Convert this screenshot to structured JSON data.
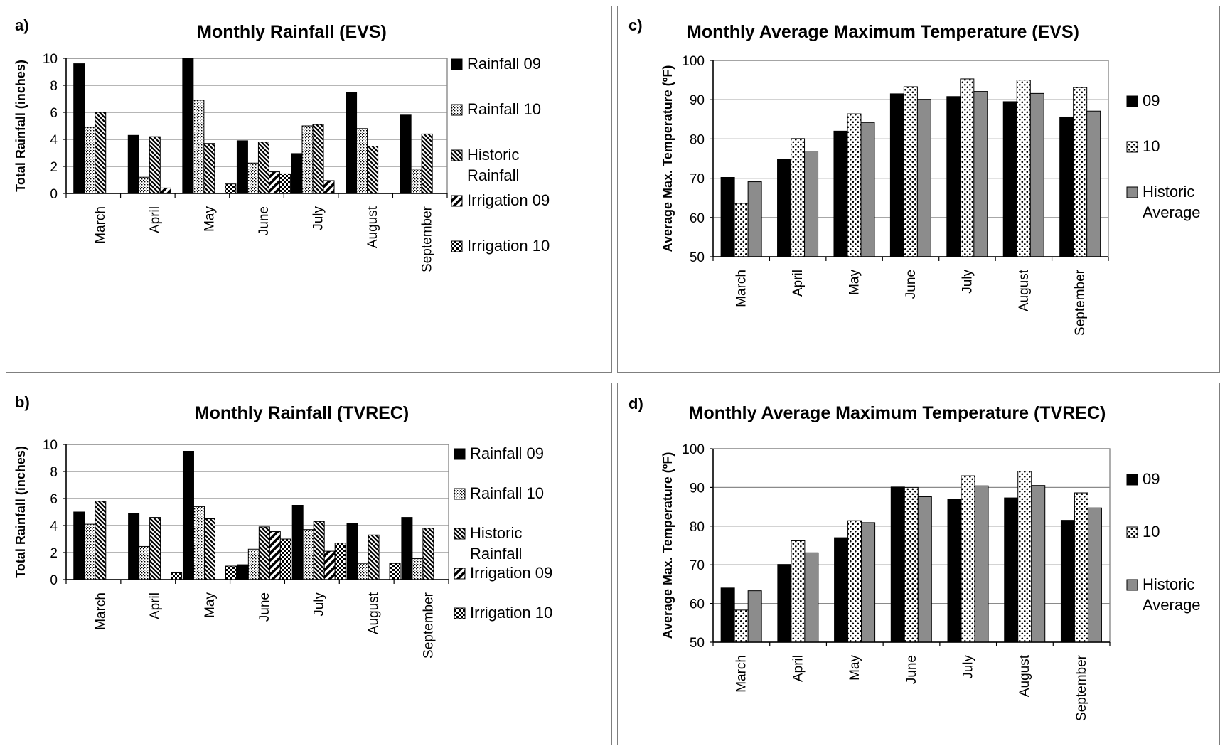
{
  "chart_data": [
    {
      "panel": "a)",
      "type": "bar",
      "title": "Monthly Rainfall (EVS)",
      "ylabel": "Total Rainfall (inches)",
      "xlabel": "",
      "ylim": [
        0,
        10
      ],
      "yticks": [
        0,
        2,
        4,
        6,
        8,
        10
      ],
      "grid": true,
      "legend": "right",
      "categories": [
        "March",
        "April",
        "May",
        "June",
        "July",
        "August",
        "September"
      ],
      "series": [
        {
          "name": "Rainfall 09",
          "pattern": "solid-black",
          "values": [
            9.6,
            4.3,
            10.0,
            3.9,
            2.95,
            7.5,
            5.8
          ]
        },
        {
          "name": "Rainfall 10",
          "pattern": "dots",
          "values": [
            4.9,
            1.2,
            6.9,
            2.25,
            5.0,
            4.8,
            1.8
          ]
        },
        {
          "name": "Historic Rainfall",
          "pattern": "diagonal-back",
          "values": [
            6.0,
            4.2,
            3.7,
            3.8,
            5.1,
            3.5,
            4.4
          ]
        },
        {
          "name": "Irrigation 09",
          "pattern": "half-diagonal",
          "values": [
            0,
            0.4,
            0,
            1.6,
            0.95,
            0,
            0
          ]
        },
        {
          "name": "Irrigation 10",
          "pattern": "checker",
          "values": [
            0,
            0,
            0.7,
            1.45,
            0,
            0,
            0
          ]
        }
      ]
    },
    {
      "panel": "c)",
      "type": "bar",
      "title": "Monthly Average Maximum Temperature (EVS)",
      "ylabel": "Average Max. Temperature (ºF)",
      "xlabel": "",
      "ylim": [
        50,
        100
      ],
      "yticks": [
        50,
        60,
        70,
        80,
        90,
        100
      ],
      "grid": true,
      "legend": "right",
      "categories": [
        "March",
        "April",
        "May",
        "June",
        "July",
        "August",
        "September"
      ],
      "series": [
        {
          "name": "09",
          "pattern": "solid-black",
          "values": [
            70.2,
            74.8,
            82.0,
            91.5,
            90.8,
            89.5,
            85.6
          ]
        },
        {
          "name": "10",
          "pattern": "dots-big",
          "values": [
            63.6,
            80.1,
            86.4,
            93.3,
            95.3,
            95.0,
            93.1
          ]
        },
        {
          "name": "Historic Average",
          "pattern": "gray",
          "values": [
            69.1,
            76.9,
            84.2,
            90.1,
            92.1,
            91.6,
            87.1
          ]
        }
      ]
    },
    {
      "panel": "b)",
      "type": "bar",
      "title": "Monthly Rainfall (TVREC)",
      "ylabel": "Total Rainfall (inches)",
      "xlabel": "",
      "ylim": [
        0,
        10
      ],
      "yticks": [
        0,
        2,
        4,
        6,
        8,
        10
      ],
      "grid": true,
      "legend": "right",
      "categories": [
        "March",
        "April",
        "May",
        "June",
        "July",
        "August",
        "September"
      ],
      "series": [
        {
          "name": "Rainfall 09",
          "pattern": "solid-black",
          "values": [
            5.0,
            4.9,
            9.5,
            1.1,
            5.5,
            4.15,
            4.6
          ]
        },
        {
          "name": "Rainfall 10",
          "pattern": "dots",
          "values": [
            4.1,
            2.45,
            5.4,
            2.25,
            3.7,
            1.2,
            1.55
          ]
        },
        {
          "name": "Historic Rainfall",
          "pattern": "diagonal-back",
          "values": [
            5.8,
            4.6,
            4.5,
            3.9,
            4.3,
            3.3,
            3.8
          ]
        },
        {
          "name": "Irrigation 09",
          "pattern": "half-diagonal",
          "values": [
            0,
            0,
            0,
            3.55,
            2.1,
            0,
            0
          ]
        },
        {
          "name": "Irrigation 10",
          "pattern": "checker",
          "values": [
            0,
            0.5,
            1.0,
            3.0,
            2.7,
            1.2,
            0
          ]
        }
      ]
    },
    {
      "panel": "d)",
      "type": "bar",
      "title": "Monthly Average Maximum Temperature (TVREC)",
      "ylabel": "Average Max. Temperature (ºF)",
      "xlabel": "",
      "ylim": [
        50,
        100
      ],
      "yticks": [
        50,
        60,
        70,
        80,
        90,
        100
      ],
      "grid": true,
      "legend": "right",
      "categories": [
        "March",
        "April",
        "May",
        "June",
        "July",
        "August",
        "September"
      ],
      "series": [
        {
          "name": "09",
          "pattern": "solid-black",
          "values": [
            64.0,
            70.1,
            77.0,
            90.1,
            87.0,
            87.3,
            81.5
          ]
        },
        {
          "name": "10",
          "pattern": "dots-big",
          "values": [
            58.3,
            76.2,
            81.4,
            90.0,
            93.0,
            94.2,
            88.6
          ]
        },
        {
          "name": "Historic Average",
          "pattern": "gray",
          "values": [
            63.3,
            73.1,
            80.9,
            87.6,
            90.4,
            90.5,
            84.7
          ]
        }
      ]
    }
  ]
}
